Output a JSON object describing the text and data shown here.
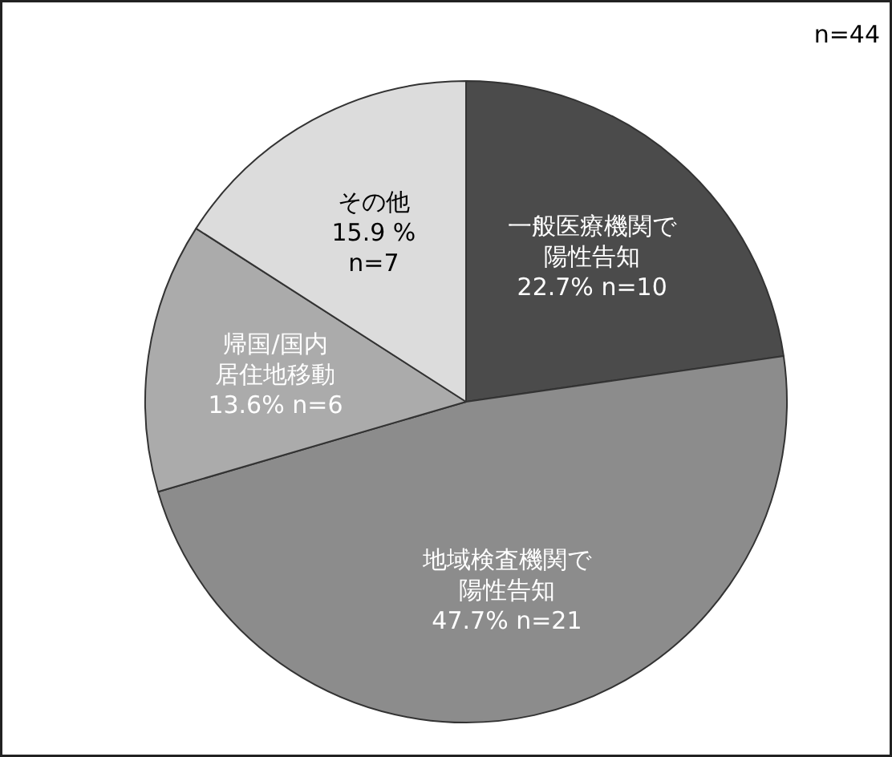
{
  "chart_data": {
    "type": "pie",
    "categories": [
      "一般医療機関で陽性告知",
      "地域検査機関で陽性告知",
      "帰国/国内居住地移動",
      "その他"
    ],
    "values": [
      22.7,
      47.7,
      13.6,
      15.9
    ],
    "value_labels": [
      "22.7% n=10",
      "47.7% n=21",
      "13.6% n=6",
      "15.9 %\nn=7"
    ],
    "colors": [
      "#4b4b4b",
      "#8c8c8c",
      "#ababab",
      "#dcdcdc"
    ],
    "annotations": [
      "n=44"
    ]
  }
}
